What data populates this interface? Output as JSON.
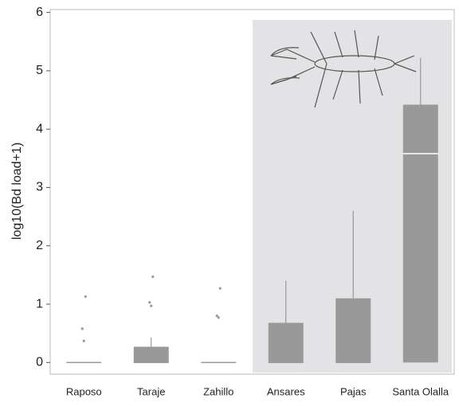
{
  "chart_data": {
    "type": "box",
    "ylabel": "log10(Bd load+1)",
    "categories": [
      "Raposo",
      "Taraje",
      "Zahillo",
      "Ansares",
      "Pajas",
      "Santa Olalla"
    ],
    "q1": [
      0,
      0,
      0,
      0,
      0,
      0
    ],
    "median": [
      0,
      0,
      0,
      0,
      0,
      3.58
    ],
    "q3": [
      0,
      0.27,
      0,
      0.68,
      1.1,
      4.42
    ],
    "whisker_low": [
      0,
      0,
      0,
      0,
      0,
      0
    ],
    "whisker_high": [
      0,
      0.43,
      0,
      1.4,
      2.6,
      5.22
    ],
    "outliers": [
      [
        0.37,
        0.58,
        1.13
      ],
      [
        0.97,
        1.03,
        1.47
      ],
      [
        0.77,
        0.8,
        1.27
      ],
      [],
      [],
      []
    ],
    "color": "#999999",
    "ylim": [
      -0.2,
      6.05
    ],
    "yticks": [
      0,
      1,
      2,
      3,
      4,
      5,
      6
    ]
  }
}
